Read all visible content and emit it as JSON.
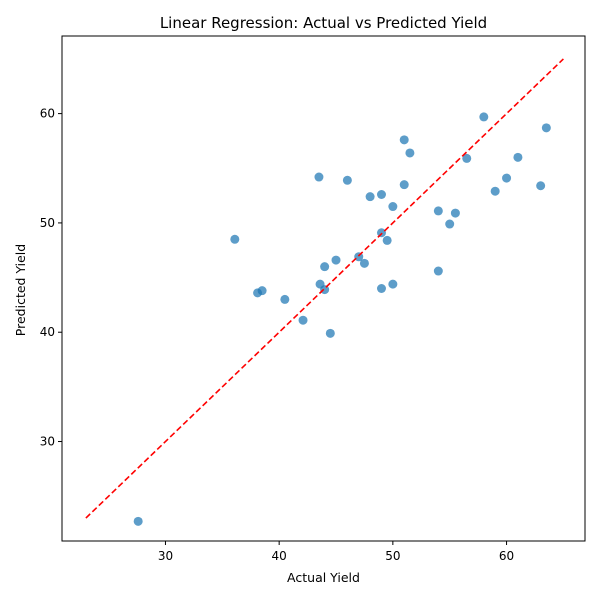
{
  "chart_data": {
    "type": "scatter",
    "title": "Linear Regression: Actual vs Predicted Yield",
    "xlabel": "Actual Yield",
    "ylabel": "Predicted Yield",
    "xlim": [
      20.9,
      66.9
    ],
    "ylim": [
      20.9,
      67.1
    ],
    "xticks": [
      30,
      40,
      50,
      60
    ],
    "yticks": [
      30,
      40,
      50,
      60
    ],
    "grid": false,
    "point_color": "#1f77b4",
    "line_color": "#ff0000",
    "reference_line": {
      "style": "dashed",
      "x": [
        23,
        65
      ],
      "y": [
        23,
        65
      ]
    },
    "points": [
      {
        "x": 27.6,
        "y": 22.7
      },
      {
        "x": 36.1,
        "y": 48.5
      },
      {
        "x": 38.1,
        "y": 43.6
      },
      {
        "x": 38.5,
        "y": 43.8
      },
      {
        "x": 40.5,
        "y": 43.0
      },
      {
        "x": 42.1,
        "y": 41.1
      },
      {
        "x": 43.5,
        "y": 54.2
      },
      {
        "x": 43.6,
        "y": 44.4
      },
      {
        "x": 44.0,
        "y": 46.0
      },
      {
        "x": 44.0,
        "y": 43.9
      },
      {
        "x": 44.5,
        "y": 39.9
      },
      {
        "x": 45.0,
        "y": 46.6
      },
      {
        "x": 46.0,
        "y": 53.9
      },
      {
        "x": 47.0,
        "y": 46.9
      },
      {
        "x": 47.5,
        "y": 46.3
      },
      {
        "x": 48.0,
        "y": 52.4
      },
      {
        "x": 49.0,
        "y": 52.6
      },
      {
        "x": 49.0,
        "y": 49.1
      },
      {
        "x": 49.0,
        "y": 44.0
      },
      {
        "x": 49.5,
        "y": 48.4
      },
      {
        "x": 50.0,
        "y": 51.5
      },
      {
        "x": 50.0,
        "y": 44.4
      },
      {
        "x": 51.0,
        "y": 57.6
      },
      {
        "x": 51.0,
        "y": 53.5
      },
      {
        "x": 51.5,
        "y": 56.4
      },
      {
        "x": 54.0,
        "y": 51.1
      },
      {
        "x": 54.0,
        "y": 45.6
      },
      {
        "x": 55.0,
        "y": 49.9
      },
      {
        "x": 55.5,
        "y": 50.9
      },
      {
        "x": 56.5,
        "y": 55.9
      },
      {
        "x": 58.0,
        "y": 59.7
      },
      {
        "x": 59.0,
        "y": 52.9
      },
      {
        "x": 60.0,
        "y": 54.1
      },
      {
        "x": 61.0,
        "y": 56.0
      },
      {
        "x": 63.0,
        "y": 53.4
      },
      {
        "x": 63.5,
        "y": 58.7
      }
    ]
  }
}
